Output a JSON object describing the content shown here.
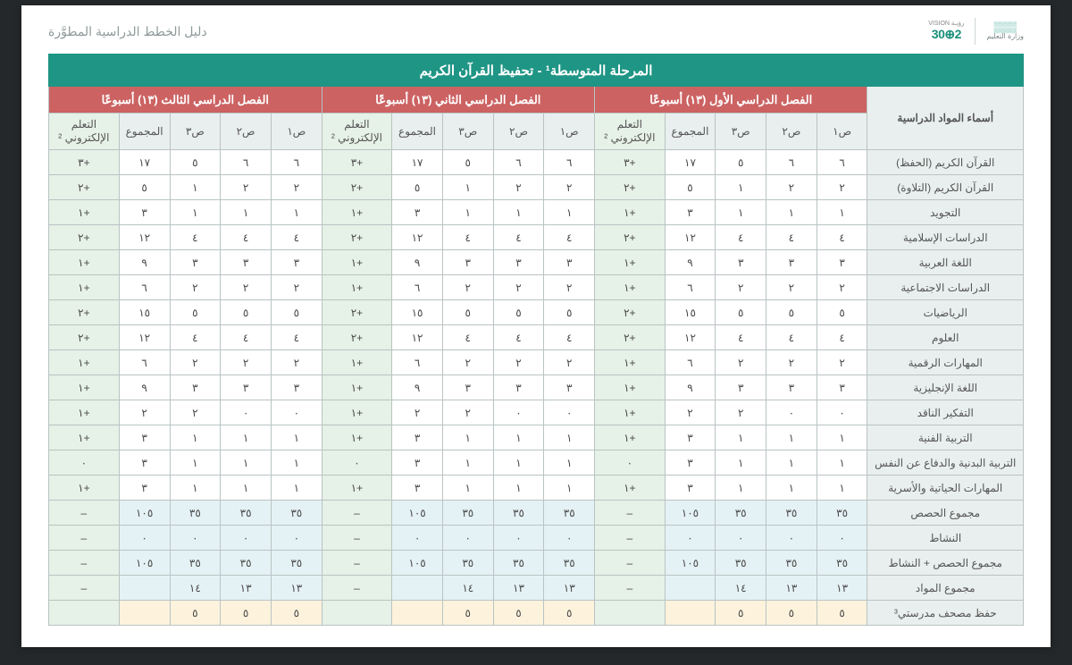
{
  "header": {
    "guide_title": "دليل الخطط الدراسية المطوَّرة",
    "vision_small": "رؤيـة VISION",
    "vision_logo": "2⊕30",
    "moe_label": "وزارة التعليم"
  },
  "title_bar": "المرحلة المتوسطة¹ - تحفيظ القرآن الكريم",
  "corner_label": "أسماء المواد الدراسية",
  "semesters": [
    "الفصل الدراسي الأول (١٣) أسبوعًا",
    "الفصل الدراسي الثاني (١٣) أسبوعًا",
    "الفصل الدراسي الثالث (١٣) أسبوعًا"
  ],
  "sub_headers": {
    "g1": "ص١",
    "g2": "ص٢",
    "g3": "ص٣",
    "total": "المجموع",
    "elearn": "التعلم الإلكتروني ²"
  },
  "rows": [
    {
      "subject": "القرآن الكريم (الحفظ)",
      "s": [
        "٦",
        "٦",
        "٥",
        "١٧",
        "+٣",
        "٦",
        "٦",
        "٥",
        "١٧",
        "+٣",
        "٦",
        "٦",
        "٥",
        "١٧",
        "+٣"
      ]
    },
    {
      "subject": "القرآن الكريم (التلاوة)",
      "s": [
        "٢",
        "٢",
        "١",
        "٥",
        "+٢",
        "٢",
        "٢",
        "١",
        "٥",
        "+٢",
        "٢",
        "٢",
        "١",
        "٥",
        "+٢"
      ]
    },
    {
      "subject": "التجويد",
      "s": [
        "١",
        "١",
        "١",
        "٣",
        "+١",
        "١",
        "١",
        "١",
        "٣",
        "+١",
        "١",
        "١",
        "١",
        "٣",
        "+١"
      ]
    },
    {
      "subject": "الدراسات الإسلامية",
      "s": [
        "٤",
        "٤",
        "٤",
        "١٢",
        "+٢",
        "٤",
        "٤",
        "٤",
        "١٢",
        "+٢",
        "٤",
        "٤",
        "٤",
        "١٢",
        "+٢"
      ]
    },
    {
      "subject": "اللغة العربية",
      "s": [
        "٣",
        "٣",
        "٣",
        "٩",
        "+١",
        "٣",
        "٣",
        "٣",
        "٩",
        "+١",
        "٣",
        "٣",
        "٣",
        "٩",
        "+١"
      ]
    },
    {
      "subject": "الدراسات الاجتماعية",
      "s": [
        "٢",
        "٢",
        "٢",
        "٦",
        "+١",
        "٢",
        "٢",
        "٢",
        "٦",
        "+١",
        "٢",
        "٢",
        "٢",
        "٦",
        "+١"
      ]
    },
    {
      "subject": "الرياضيات",
      "s": [
        "٥",
        "٥",
        "٥",
        "١٥",
        "+٢",
        "٥",
        "٥",
        "٥",
        "١٥",
        "+٢",
        "٥",
        "٥",
        "٥",
        "١٥",
        "+٢"
      ]
    },
    {
      "subject": "العلوم",
      "s": [
        "٤",
        "٤",
        "٤",
        "١٢",
        "+٢",
        "٤",
        "٤",
        "٤",
        "١٢",
        "+٢",
        "٤",
        "٤",
        "٤",
        "١٢",
        "+٢"
      ]
    },
    {
      "subject": "المهارات الرقمية",
      "s": [
        "٢",
        "٢",
        "٢",
        "٦",
        "+١",
        "٢",
        "٢",
        "٢",
        "٦",
        "+١",
        "٢",
        "٢",
        "٢",
        "٦",
        "+١"
      ]
    },
    {
      "subject": "اللغة الإنجليزية",
      "s": [
        "٣",
        "٣",
        "٣",
        "٩",
        "+١",
        "٣",
        "٣",
        "٣",
        "٩",
        "+١",
        "٣",
        "٣",
        "٣",
        "٩",
        "+١"
      ]
    },
    {
      "subject": "التفكير الناقد",
      "s": [
        "٠",
        "٠",
        "٢",
        "٢",
        "+١",
        "٠",
        "٠",
        "٢",
        "٢",
        "+١",
        "٠",
        "٠",
        "٢",
        "٢",
        "+١"
      ]
    },
    {
      "subject": "التربية الفنية",
      "s": [
        "١",
        "١",
        "١",
        "٣",
        "+١",
        "١",
        "١",
        "١",
        "٣",
        "+١",
        "١",
        "١",
        "١",
        "٣",
        "+١"
      ]
    },
    {
      "subject": "التربية البدنية والدفاع عن النفس",
      "s": [
        "١",
        "١",
        "١",
        "٣",
        "٠",
        "١",
        "١",
        "١",
        "٣",
        "٠",
        "١",
        "١",
        "١",
        "٣",
        "٠"
      ]
    },
    {
      "subject": "المهارات الحياتية والأسرية",
      "s": [
        "١",
        "١",
        "١",
        "٣",
        "+١",
        "١",
        "١",
        "١",
        "٣",
        "+١",
        "١",
        "١",
        "١",
        "٣",
        "+١"
      ]
    }
  ],
  "summary": [
    {
      "subject": "مجموع الحصص",
      "s": [
        "٣٥",
        "٣٥",
        "٣٥",
        "١٠٥",
        "–",
        "٣٥",
        "٣٥",
        "٣٥",
        "١٠٥",
        "–",
        "٣٥",
        "٣٥",
        "٣٥",
        "١٠٥",
        "–"
      ]
    },
    {
      "subject": "النشاط",
      "s": [
        "٠",
        "٠",
        "٠",
        "٠",
        "–",
        "٠",
        "٠",
        "٠",
        "٠",
        "–",
        "٠",
        "٠",
        "٠",
        "٠",
        "–"
      ]
    },
    {
      "subject": "مجموع الحصص + النشاط",
      "s": [
        "٣٥",
        "٣٥",
        "٣٥",
        "١٠٥",
        "–",
        "٣٥",
        "٣٥",
        "٣٥",
        "١٠٥",
        "–",
        "٣٥",
        "٣٥",
        "٣٥",
        "١٠٥",
        "–"
      ]
    },
    {
      "subject": "مجموع المواد",
      "s": [
        "١٣",
        "١٣",
        "١٤",
        "",
        "–",
        "١٣",
        "١٣",
        "١٤",
        "",
        "–",
        "١٣",
        "١٣",
        "١٤",
        "",
        "–"
      ]
    }
  ],
  "madrasati": {
    "subject": "حفظ مصحف مدرستي³",
    "s": [
      "٥",
      "٥",
      "٥",
      "",
      "",
      "٥",
      "٥",
      "٥",
      "",
      "",
      "٥",
      "٥",
      "٥",
      "",
      ""
    ]
  }
}
